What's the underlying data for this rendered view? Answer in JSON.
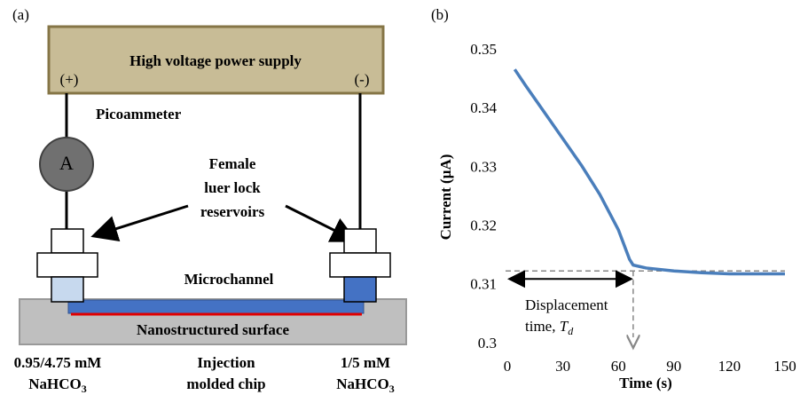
{
  "diagram": {
    "panel_label": "(a)",
    "power_supply": "High voltage power supply",
    "plus": "(+)",
    "minus": "(-)",
    "meter": "A",
    "meter_label": "Picoammeter",
    "reservoir_label": [
      "Female",
      "luer lock",
      "reservoirs"
    ],
    "channel_label": "Microchannel",
    "surface_label": "Nanostructured surface",
    "left_solution": {
      "concentration": "0.95/4.75 mM",
      "formula": "NaHCO",
      "subscript": "3"
    },
    "chip_label": [
      "Injection",
      "molded chip"
    ],
    "right_solution": {
      "concentration": "1/5 mM",
      "formula": "NaHCO",
      "subscript": "3"
    }
  },
  "chart_data": {
    "type": "line",
    "panel_label": "(b)",
    "x_label": "Time (s)",
    "y_label": "Current (µA)",
    "color": "#4a7ebb",
    "x": [
      4,
      10,
      20,
      30,
      40,
      50,
      60,
      66,
      68,
      75,
      90,
      105,
      120,
      135,
      150
    ],
    "values": [
      0.3468,
      0.344,
      0.3395,
      0.335,
      0.3305,
      0.3255,
      0.3195,
      0.3145,
      0.3135,
      0.313,
      0.3125,
      0.3122,
      0.312,
      0.312,
      0.312
    ],
    "xlim": [
      0,
      150
    ],
    "xticks": [
      0,
      30,
      60,
      90,
      120,
      150
    ],
    "ylim": [
      0.3,
      0.35
    ],
    "yticks": [
      0.3,
      0.31,
      0.32,
      0.33,
      0.34,
      0.35
    ],
    "threshold": 0.3125,
    "displacement_time": 68,
    "annotation": {
      "line1": "Displacement",
      "line2": "time, ",
      "symbol": "T",
      "subscript": "d"
    }
  }
}
